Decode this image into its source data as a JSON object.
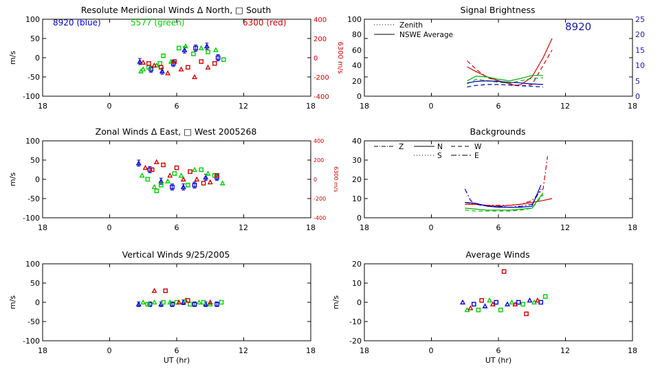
{
  "panels": {
    "p1": {
      "title": "Resolute Meridional Winds Δ North, □ South",
      "legend": {
        "blue": "8920 (blue)",
        "green": "5577 (green)",
        "red": "6300 (red)"
      },
      "yticks": [
        "100",
        "50",
        "0",
        "-50",
        "-100"
      ],
      "yticks_right": [
        "400",
        "200",
        "0",
        "-200",
        "-400"
      ],
      "ylabel": "m/s",
      "ylabel_right": "6300 m/s"
    },
    "p2": {
      "title": "Signal Brightness",
      "legend": {
        "zenith": "Zenith",
        "avg": "NSWE Average"
      },
      "station": "8920",
      "yticks": [
        "100",
        "80",
        "60",
        "40",
        "20",
        "0"
      ],
      "yticks_right": [
        "25",
        "20",
        "15",
        "10",
        "5",
        "0"
      ]
    },
    "p3": {
      "title": "Zonal Winds Δ East, □ West 2005268",
      "yticks": [
        "100",
        "50",
        "0",
        "-50",
        "-100"
      ],
      "yticks_right": [
        "400",
        "200",
        "0",
        "-200",
        "-400"
      ],
      "ylabel": "m/s",
      "ylabel_right": "6300 m/s"
    },
    "p4": {
      "title": "Backgrounds",
      "legend": {
        "Z": "Z",
        "N": "N",
        "W": "W",
        "S": "S",
        "E": "E"
      },
      "yticks": [
        "40",
        "30",
        "20",
        "10",
        "0"
      ]
    },
    "p5": {
      "title": "Vertical Winds 9/25/2005",
      "yticks": [
        "100",
        "50",
        "0",
        "-50",
        "-100"
      ],
      "ylabel": "m/s"
    },
    "p6": {
      "title": "Average Winds",
      "yticks": [
        "20",
        "10",
        "0",
        "-10",
        "-20"
      ],
      "ylabel": "m/s"
    }
  },
  "xticks": [
    "18",
    "0",
    "6",
    "12",
    "18"
  ],
  "xlabel": "UT (hr)",
  "chart_data": [
    {
      "panel": "p1",
      "type": "scatter",
      "title": "Resolute Meridional Winds Δ North, □ South",
      "xlim": [
        -6,
        18
      ],
      "ylim": [
        -100,
        100
      ],
      "ylim_right": [
        -400,
        400
      ],
      "ylabel": "m/s",
      "ylabel_right": "6300 m/s",
      "series": [
        {
          "color": "#0000cc",
          "err": 8,
          "x": [
            2.7,
            3.7,
            4.7,
            5.7,
            6.7,
            7.7,
            8.7,
            9.7
          ],
          "y": [
            -10,
            -30,
            -35,
            -15,
            20,
            25,
            30,
            0
          ]
        },
        {
          "color": "#00cc00",
          "x": [
            3.0,
            3.5,
            4.2,
            4.8,
            5.5,
            6.2,
            6.8,
            7.5,
            8.2,
            8.8,
            9.5,
            10.2,
            2.8,
            4.5
          ],
          "y": [
            -30,
            -25,
            -20,
            5,
            -10,
            25,
            30,
            10,
            25,
            15,
            20,
            -5,
            -35,
            -15
          ]
        },
        {
          "color": "#cc0000",
          "axis": "right",
          "x": [
            3.0,
            3.5,
            4.0,
            4.6,
            5.2,
            5.8,
            6.4,
            7.0,
            7.6,
            8.2,
            8.8,
            9.4
          ],
          "y": [
            -50,
            -60,
            -80,
            -100,
            -160,
            -40,
            -120,
            -100,
            -200,
            -40,
            -100,
            -60
          ]
        }
      ]
    },
    {
      "panel": "p2",
      "type": "line",
      "title": "Signal Brightness",
      "xlim": [
        -6,
        18
      ],
      "ylim": [
        0,
        100
      ],
      "ylim_right": [
        0,
        25
      ],
      "series": [
        {
          "color": "#cc0000",
          "style": "solid",
          "x": [
            3.2,
            4,
            5,
            6,
            7,
            7.5,
            8,
            9,
            10,
            10.8
          ],
          "y": [
            38,
            32,
            25,
            20,
            16,
            14,
            15,
            25,
            50,
            75
          ]
        },
        {
          "color": "#cc0000",
          "style": "dashed",
          "x": [
            3.2,
            4,
            5,
            6,
            7,
            8,
            9,
            10,
            10.8
          ],
          "y": [
            46,
            35,
            24,
            20,
            16,
            13,
            15,
            40,
            60
          ]
        },
        {
          "color": "#00aa00",
          "style": "solid",
          "x": [
            3.2,
            4,
            5,
            6,
            7,
            8,
            9,
            10
          ],
          "y": [
            20,
            26,
            25,
            22,
            20,
            23,
            27,
            27
          ]
        },
        {
          "color": "#00aa00",
          "style": "dashed",
          "x": [
            3.2,
            4,
            5,
            6,
            7,
            8,
            9,
            10
          ],
          "y": [
            16,
            22,
            20,
            18,
            17,
            20,
            23,
            24
          ]
        },
        {
          "color": "#0000aa",
          "style": "solid",
          "axis": "right",
          "x": [
            3.2,
            4,
            5,
            6,
            7,
            8,
            9,
            10
          ],
          "y": [
            4.3,
            4.8,
            5.0,
            4.8,
            4.5,
            4.3,
            4.0,
            3.8
          ]
        },
        {
          "color": "#0000aa",
          "style": "dashed",
          "axis": "right",
          "x": [
            3.2,
            4,
            5,
            6,
            7,
            8,
            9,
            10
          ],
          "y": [
            3.0,
            3.5,
            3.8,
            3.8,
            3.6,
            3.4,
            3.2,
            3.0
          ]
        }
      ]
    },
    {
      "panel": "p3",
      "type": "scatter",
      "title": "Zonal Winds Δ East, □ West 2005268",
      "xlim": [
        -6,
        18
      ],
      "ylim": [
        -100,
        100
      ],
      "ylim_right": [
        -400,
        400
      ],
      "ylabel": "m/s",
      "ylabel_right": "6300 m/s",
      "series": [
        {
          "color": "#0000cc",
          "err": 8,
          "x": [
            2.6,
            3.6,
            4.6,
            5.6,
            6.6,
            7.6,
            8.6,
            9.6
          ],
          "y": [
            42,
            25,
            -5,
            -20,
            -20,
            -15,
            5,
            5
          ]
        },
        {
          "color": "#00cc00",
          "x": [
            2.9,
            3.4,
            4.0,
            4.6,
            5.2,
            5.8,
            6.4,
            7.0,
            7.6,
            8.2,
            8.8,
            9.4,
            10.1,
            4.2
          ],
          "y": [
            10,
            0,
            -20,
            -15,
            -5,
            15,
            10,
            -15,
            25,
            25,
            15,
            10,
            -10,
            -30
          ]
        },
        {
          "color": "#cc0000",
          "axis": "right",
          "x": [
            3.2,
            3.8,
            4.2,
            4.8,
            5.4,
            6.0,
            6.6,
            7.2,
            7.8,
            8.4,
            9.0,
            9.6
          ],
          "y": [
            120,
            100,
            180,
            150,
            40,
            120,
            0,
            80,
            0,
            -40,
            -30,
            40
          ]
        }
      ]
    },
    {
      "panel": "p4",
      "type": "line",
      "title": "Backgrounds",
      "xlim": [
        -6,
        18
      ],
      "ylim": [
        0,
        40
      ],
      "series": [
        {
          "color": "#cc0000",
          "style": "solid",
          "x": [
            3,
            4,
            5,
            6,
            7,
            8,
            9,
            10,
            10.8
          ],
          "y": [
            7,
            7,
            6.5,
            6,
            6.5,
            7,
            8,
            9,
            10
          ]
        },
        {
          "color": "#cc0000",
          "style": "dashdot",
          "x": [
            3,
            4,
            5,
            6,
            7,
            8,
            9,
            10,
            10.4
          ],
          "y": [
            8,
            7,
            6.5,
            6.5,
            6.5,
            7,
            9,
            15,
            32
          ]
        },
        {
          "color": "#00aa00",
          "style": "solid",
          "x": [
            3,
            4,
            5,
            6,
            7,
            8,
            9,
            10
          ],
          "y": [
            5,
            4.5,
            4,
            4,
            4,
            4.5,
            5,
            13
          ]
        },
        {
          "color": "#00aa00",
          "style": "dashed",
          "x": [
            3,
            4,
            5,
            6,
            7,
            8,
            9,
            10
          ],
          "y": [
            4,
            3.5,
            3.5,
            3.5,
            3.5,
            4,
            5,
            12
          ]
        },
        {
          "color": "#0000aa",
          "style": "solid",
          "x": [
            3,
            4,
            5,
            6,
            7,
            8,
            9,
            9.8
          ],
          "y": [
            8,
            7.5,
            6,
            5.5,
            5.5,
            5.5,
            6,
            17
          ]
        },
        {
          "color": "#0000aa",
          "style": "dashdot",
          "x": [
            3,
            3.5,
            4,
            5,
            6,
            7,
            8,
            9,
            9.8
          ],
          "y": [
            15,
            9,
            7,
            6,
            6,
            5.5,
            6,
            7,
            15
          ]
        }
      ]
    },
    {
      "panel": "p5",
      "type": "scatter",
      "title": "Vertical Winds 9/25/2005",
      "xlim": [
        -6,
        18
      ],
      "ylim": [
        -100,
        100
      ],
      "ylabel": "m/s",
      "series": [
        {
          "color": "#0000cc",
          "err": 6,
          "x": [
            2.6,
            3.6,
            4.6,
            5.6,
            6.6,
            7.6,
            8.6,
            9.6
          ],
          "y": [
            -5,
            -5,
            -5,
            -5,
            0,
            -5,
            -5,
            -5
          ]
        },
        {
          "color": "#00cc00",
          "x": [
            3.0,
            3.4,
            4.0,
            4.8,
            5.4,
            6.0,
            6.8,
            7.2,
            8.0,
            8.4,
            9.0,
            10.0
          ],
          "y": [
            0,
            -5,
            0,
            0,
            0,
            0,
            5,
            -5,
            0,
            0,
            -5,
            0
          ]
        },
        {
          "color": "#cc0000",
          "x": [
            4.0,
            5.0,
            6.2,
            7.0,
            9.0
          ],
          "y": [
            30,
            30,
            0,
            5,
            0
          ]
        }
      ]
    },
    {
      "panel": "p6",
      "type": "scatter",
      "title": "Average Winds",
      "xlim": [
        -6,
        18
      ],
      "ylim": [
        -20,
        20
      ],
      "ylabel": "m/s",
      "series": [
        {
          "color": "#0000cc",
          "x": [
            2.8,
            3.8,
            4.8,
            5.8,
            6.8,
            7.8,
            8.8,
            9.8
          ],
          "y": [
            0,
            -1,
            -2,
            0,
            -1,
            0,
            1,
            0
          ]
        },
        {
          "color": "#00cc00",
          "x": [
            3.2,
            4.2,
            5.2,
            6.2,
            7.2,
            8.2,
            9.2,
            10.2
          ],
          "y": [
            -4,
            -4,
            1,
            -4,
            0,
            -1,
            0,
            3
          ]
        },
        {
          "color": "#cc0000",
          "x": [
            3.5,
            4.5,
            5.5,
            6.5,
            7.5,
            8.5,
            9.5
          ],
          "y": [
            -3,
            1,
            -1,
            16,
            -1,
            -6,
            1
          ]
        }
      ]
    }
  ]
}
